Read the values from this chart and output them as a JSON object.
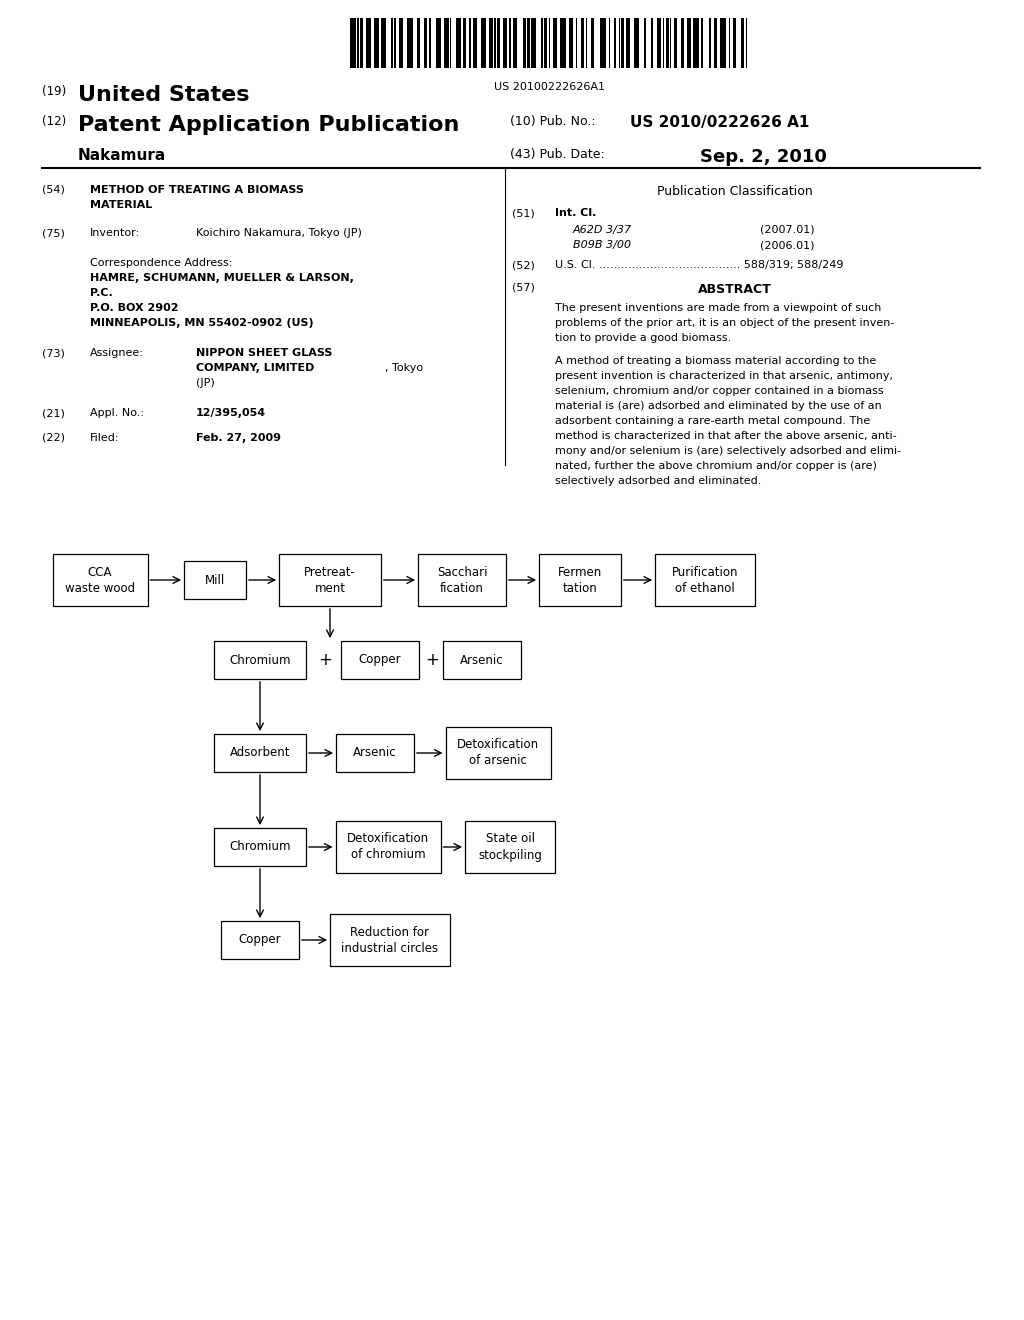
{
  "bg_color": "#ffffff",
  "barcode_text": "US 20100222626A1",
  "title_num": "(19)",
  "title_text": "United States",
  "pub_num": "(12)",
  "pub_text": "Patent Application Publication",
  "pub_no_label": "(10) Pub. No.:",
  "pub_no_value": "US 2010/0222626 A1",
  "pub_date_label": "(43) Pub. Date:",
  "pub_date_value": "Sep. 2, 2010",
  "inventor_name": "Nakamura",
  "abstract_para1": "The present inventions are made from a viewpoint of such problems of the prior art, it is an object of the present invention to provide a good biomass.",
  "abstract_para2": "A method of treating a biomass material according to the present invention is characterized in that arsenic, antimony, selenium, chromium and/or copper contained in a biomass material is (are) adsorbed and eliminated by the use of an adsorbent containing a rare-earth metal compound. The method is characterized in that after the above arsenic, antimony and/or selenium is (are) selectively adsorbed and eliminated, further the above chromium and/or copper is (are) selectively adsorbed and eliminated."
}
